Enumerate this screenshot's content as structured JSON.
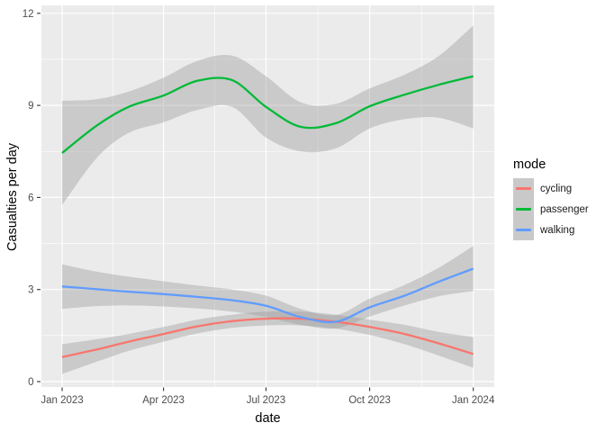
{
  "chart_data": {
    "type": "line",
    "title": "",
    "xlabel": "date",
    "ylabel": "Casualties per day",
    "legend": {
      "title": "mode",
      "position": "right"
    },
    "x_axis": {
      "unit": "days since 2023-01-01",
      "range_days": [
        0,
        365
      ],
      "point_days": [
        0,
        31,
        59,
        90,
        120,
        151,
        181,
        212,
        243,
        273,
        304,
        334,
        365
      ],
      "point_months": [
        "Jan 2023",
        "Feb 2023",
        "Mar 2023",
        "Apr 2023",
        "May 2023",
        "Jun 2023",
        "Jul 2023",
        "Aug 2023",
        "Sep 2023",
        "Oct 2023",
        "Nov 2023",
        "Dec 2023",
        "Jan 2024"
      ],
      "ticks": [
        {
          "label": "Jan 2023",
          "day": 0
        },
        {
          "label": "Apr 2023",
          "day": 90
        },
        {
          "label": "Jul 2023",
          "day": 181
        },
        {
          "label": "Oct 2023",
          "day": 273
        },
        {
          "label": "Jan 2024",
          "day": 365
        }
      ]
    },
    "y_axis": {
      "ticks": [
        {
          "label": "0",
          "value": 0
        },
        {
          "label": "3",
          "value": 3
        },
        {
          "label": "6",
          "value": 6
        },
        {
          "label": "9",
          "value": 9
        },
        {
          "label": "12",
          "value": 12
        }
      ],
      "minor_values": [
        1.5,
        4.5,
        7.5,
        10.5
      ],
      "ylim": [
        0,
        12
      ]
    },
    "grid": {
      "major": true,
      "minor": true
    },
    "series": [
      {
        "name": "cycling",
        "color": "#F8766D",
        "values": [
          0.8,
          1.05,
          1.3,
          1.55,
          1.8,
          1.97,
          2.05,
          2.05,
          1.95,
          1.78,
          1.55,
          1.25,
          0.9
        ],
        "ci_upper": [
          1.22,
          1.38,
          1.55,
          1.78,
          2.02,
          2.18,
          2.28,
          2.28,
          2.18,
          2.02,
          1.85,
          1.62,
          1.45
        ],
        "ci_lower": [
          0.25,
          0.65,
          1.0,
          1.3,
          1.57,
          1.75,
          1.83,
          1.83,
          1.72,
          1.52,
          1.22,
          0.85,
          0.45
        ]
      },
      {
        "name": "passenger",
        "color": "#00BA38",
        "values": [
          7.45,
          8.35,
          8.95,
          9.32,
          9.8,
          9.82,
          8.95,
          8.3,
          8.42,
          8.97,
          9.35,
          9.67,
          9.95
        ],
        "ci_upper": [
          9.15,
          9.2,
          9.45,
          9.9,
          10.45,
          10.62,
          9.95,
          9.1,
          9.05,
          9.55,
          10.0,
          10.6,
          11.6
        ],
        "ci_lower": [
          5.75,
          7.3,
          8.1,
          8.45,
          8.85,
          8.95,
          7.95,
          7.5,
          7.6,
          8.25,
          8.55,
          8.6,
          8.25
        ]
      },
      {
        "name": "walking",
        "color": "#619CFF",
        "values": [
          3.1,
          3.01,
          2.93,
          2.85,
          2.76,
          2.65,
          2.47,
          2.1,
          1.95,
          2.42,
          2.8,
          3.25,
          3.68
        ],
        "ci_upper": [
          3.82,
          3.58,
          3.42,
          3.27,
          3.13,
          3.0,
          2.8,
          2.37,
          2.17,
          2.7,
          3.15,
          3.7,
          4.42
        ],
        "ci_lower": [
          2.37,
          2.46,
          2.48,
          2.45,
          2.38,
          2.28,
          2.1,
          1.85,
          1.73,
          2.12,
          2.48,
          2.78,
          2.95
        ]
      }
    ],
    "colors": {
      "panel_bg": "#EBEBEB",
      "grid": "#FFFFFF",
      "ribbon_fill": "#999999",
      "ribbon_alpha": 0.4,
      "tick_label": "#4D4D4D",
      "tick_mark": "#333333",
      "axis_title": "#000000",
      "legend_key_bg": "#C9C9C9",
      "background": "#FFFFFF"
    }
  }
}
